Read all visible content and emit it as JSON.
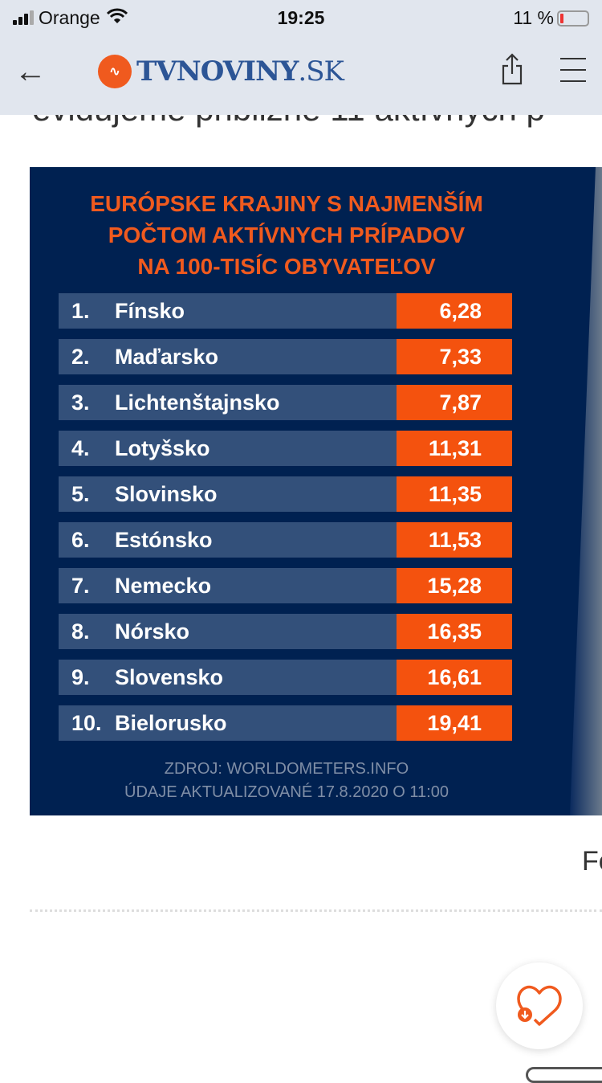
{
  "status": {
    "carrier": "Orange",
    "time": "19:25",
    "battery": "11 %"
  },
  "nav": {
    "logo_mark": "∿",
    "logo_brand": "TVNOVINY",
    "logo_tld": ".SK"
  },
  "article": {
    "clipped_line": "evidujeme približne 11 aktívnych p",
    "trailing_text": "Fo"
  },
  "infographic": {
    "title_lines": [
      "EURÓPSKE KRAJINY S NAJMENŠÍM",
      "POČTOM AKTÍVNYCH PRÍPADOV",
      "NA 100-TISÍC OBYVATEĽOV"
    ],
    "rows": [
      {
        "rank": "1.",
        "country": "Fínsko",
        "value": "6,28"
      },
      {
        "rank": "2.",
        "country": "Maďarsko",
        "value": "7,33"
      },
      {
        "rank": "3.",
        "country": "Lichtenštajnsko",
        "value": "7,87"
      },
      {
        "rank": "4.",
        "country": "Lotyšsko",
        "value": "11,31"
      },
      {
        "rank": "5.",
        "country": "Slovinsko",
        "value": "11,35"
      },
      {
        "rank": "6.",
        "country": "Estónsko",
        "value": "11,53"
      },
      {
        "rank": "7.",
        "country": "Nemecko",
        "value": "15,28"
      },
      {
        "rank": "8.",
        "country": "Nórsko",
        "value": "16,35"
      },
      {
        "rank": "9.",
        "country": "Slovensko",
        "value": "16,61"
      },
      {
        "rank": "10.",
        "country": "Bielorusko",
        "value": "19,41"
      }
    ],
    "source_lines": [
      "ZDROJ: WORLDOMETERS.INFO",
      "ÚDAJE AKTUALIZOVANÉ 17.8.2020 O 11:00"
    ],
    "colors": {
      "background": "#002151",
      "accent": "#f4520e",
      "row": "#33507a"
    }
  }
}
